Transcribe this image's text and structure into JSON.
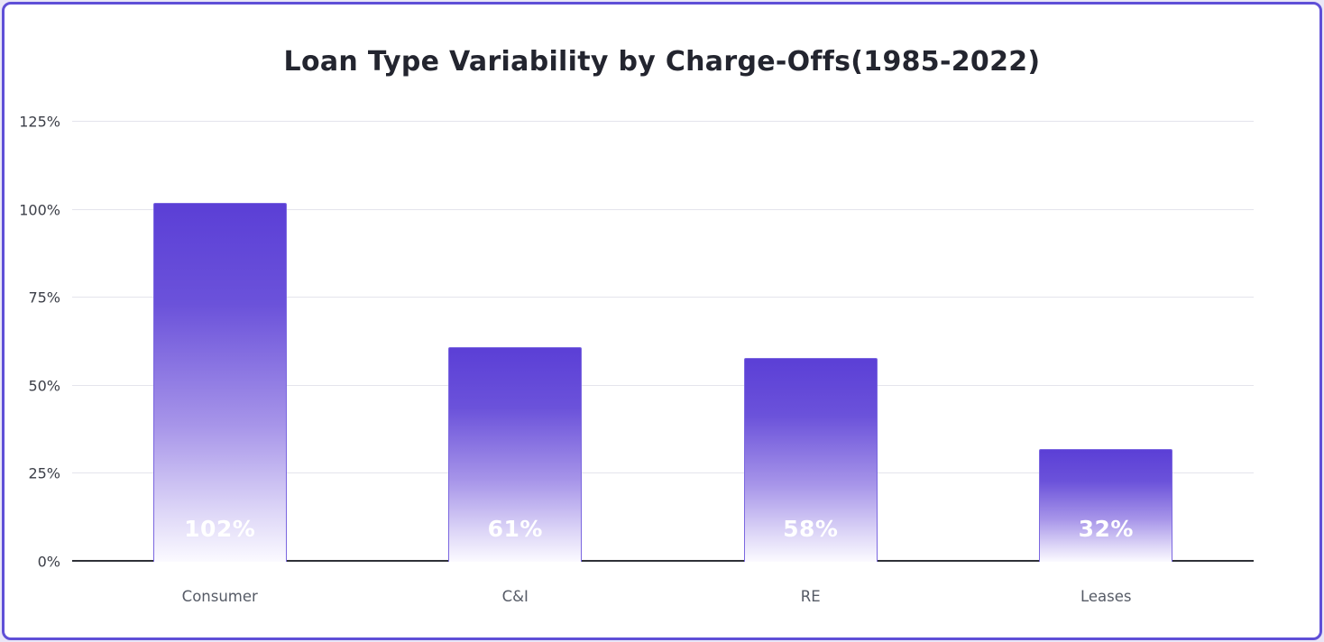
{
  "frame": {
    "border_color": "#5f4fd7",
    "background_color": "#ffffff",
    "outer_background_color": "#e9e7f7"
  },
  "chart_data": {
    "type": "bar",
    "title": "Loan Type Variability by Charge-Offs(1985-2022)",
    "categories": [
      "Consumer",
      "C&I",
      "RE",
      "Leases"
    ],
    "values": [
      102,
      61,
      58,
      32
    ],
    "value_labels": [
      "102%",
      "61%",
      "58%",
      "32%"
    ],
    "xlabel": "",
    "ylabel": "",
    "ylim": [
      0,
      125
    ],
    "yticks": [
      0,
      25,
      50,
      75,
      100,
      125
    ],
    "ytick_labels": [
      "0%",
      "25%",
      "50%",
      "75%",
      "100%",
      "125%"
    ],
    "grid": true,
    "legend": false,
    "colors": {
      "bar_top": "#5b3fd6",
      "bar_bottom": "#fbfaff",
      "bar_border": "#7b67e0",
      "bar_value_label": "#ffffff",
      "gridline": "#e4e4ec",
      "axis_line": "#2f3138",
      "title_text": "#23252f",
      "tick_text": "#3b3e47",
      "category_text": "#565b66"
    }
  }
}
